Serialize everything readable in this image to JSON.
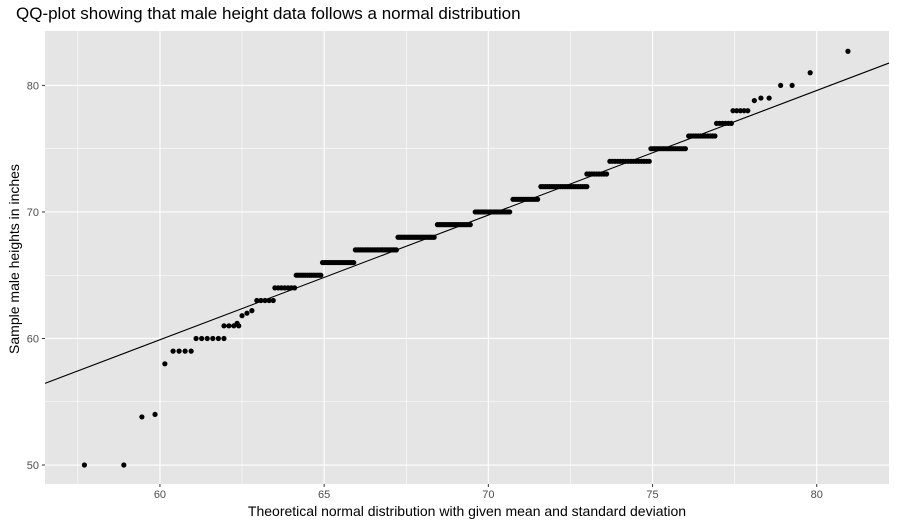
{
  "chart_data": {
    "type": "scatter",
    "title": "QQ-plot showing that male height data follows a normal distribution",
    "xlabel": "Theoretical normal distribution with given mean and standard deviation",
    "ylabel": "Sample male heights in inches",
    "xlim": [
      56.5,
      82.2
    ],
    "ylim": [
      48.5,
      84.3
    ],
    "x_ticks": [
      60,
      65,
      70,
      75,
      80
    ],
    "y_ticks": [
      50,
      60,
      70,
      80
    ],
    "grid": true,
    "background": "#e5e5e5",
    "grid_color": "#ffffff",
    "point_color": "#000000",
    "reference_line": {
      "slope": 0.985,
      "intercept": 0.8
    },
    "steps": [
      [
        50,
        57.7,
        57.7,
        1
      ],
      [
        50,
        58.9,
        58.9,
        1
      ],
      [
        53.8,
        59.45,
        59.45,
        1
      ],
      [
        54,
        59.85,
        59.85,
        1
      ],
      [
        58,
        60.15,
        60.15,
        1
      ],
      [
        59,
        60.4,
        60.95,
        4
      ],
      [
        60,
        61.1,
        61.95,
        6
      ],
      [
        61,
        61.95,
        62.4,
        4
      ],
      [
        61.2,
        62.35,
        62.35,
        1
      ],
      [
        61.8,
        62.5,
        62.5,
        1
      ],
      [
        62,
        62.65,
        62.65,
        1
      ],
      [
        62.2,
        62.8,
        62.8,
        1
      ],
      [
        63,
        62.95,
        63.45,
        5
      ],
      [
        64,
        63.5,
        64.1,
        7
      ],
      [
        65,
        64.15,
        64.9,
        14
      ],
      [
        66,
        64.95,
        65.9,
        20
      ],
      [
        67,
        65.95,
        67.2,
        25
      ],
      [
        68,
        67.25,
        68.35,
        22
      ],
      [
        69,
        68.45,
        69.45,
        18
      ],
      [
        70,
        69.6,
        70.65,
        22
      ],
      [
        71,
        70.75,
        71.5,
        15
      ],
      [
        72,
        71.6,
        73.0,
        22
      ],
      [
        73,
        73.0,
        73.6,
        9
      ],
      [
        74,
        73.7,
        74.9,
        16
      ],
      [
        75,
        74.95,
        76.0,
        18
      ],
      [
        76,
        76.1,
        76.9,
        12
      ],
      [
        77,
        76.95,
        77.4,
        6
      ],
      [
        78,
        77.45,
        77.9,
        5
      ],
      [
        78.8,
        78.1,
        78.1,
        1
      ],
      [
        79,
        78.3,
        78.55,
        2
      ],
      [
        80,
        78.9,
        79.25,
        2
      ],
      [
        81,
        79.8,
        79.8,
        1
      ],
      [
        82.7,
        80.95,
        80.95,
        1
      ]
    ]
  }
}
